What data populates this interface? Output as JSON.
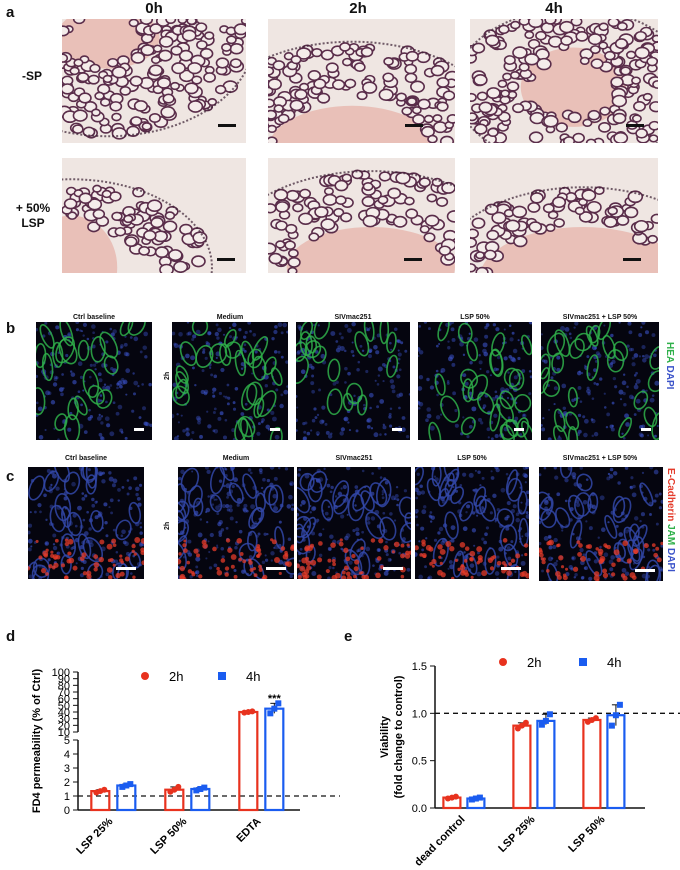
{
  "panels": {
    "a": "a",
    "b": "b",
    "c": "c",
    "d": "d",
    "e": "e"
  },
  "panel_a": {
    "col_headers": [
      "0h",
      "2h",
      "4h"
    ],
    "row1_label": "-SP",
    "row2_label_l1": "+ 50%",
    "row2_label_l2": "LSP"
  },
  "panel_b": {
    "titles": [
      "Ctrl baseline",
      "Medium",
      "SIVmac251",
      "LSP 50%",
      "SIVmac251 + LSP 50%"
    ],
    "time_label": "2h",
    "stain_hea": "HEA",
    "stain_dapi": "DAPI",
    "colors": {
      "hea": "#2fb04a",
      "dapi": "#3b53c9"
    }
  },
  "panel_c": {
    "titles": [
      "Ctrl baseline",
      "Medium",
      "SIVmac251",
      "LSP 50%",
      "SIVmac251 + LSP 50%"
    ],
    "time_label": "2h",
    "stain_ecad": "E-Cadherin",
    "stain_jam": "JAM",
    "stain_dapi": "DAPI",
    "colors": {
      "ecad": "#e43b2a",
      "jam": "#2fb04a",
      "dapi": "#3b53c9"
    }
  },
  "chart_data": [
    {
      "type": "bar",
      "panel": "d",
      "ylabel": "FD4 permeability (% of Ctrl)",
      "categories": [
        "LSP 25%",
        "LSP 50%",
        "EDTA"
      ],
      "series": [
        {
          "name": "2h",
          "color": "#e8321e",
          "values": [
            1.35,
            1.45,
            40
          ],
          "points": [
            [
              1.25,
              1.35,
              1.45
            ],
            [
              1.3,
              1.45,
              1.65
            ],
            [
              39,
              40,
              41
            ]
          ]
        },
        {
          "name": "4h",
          "color": "#1a5cf0",
          "values": [
            1.75,
            1.5,
            45
          ],
          "points": [
            [
              1.65,
              1.75,
              1.85
            ],
            [
              1.4,
              1.5,
              1.6
            ],
            [
              38,
              45,
              53
            ]
          ]
        }
      ],
      "y_axis_break": {
        "lower": [
          0,
          5
        ],
        "upper": [
          10,
          100
        ]
      },
      "yticks_lower": [
        0,
        1,
        2,
        3,
        4,
        5
      ],
      "yticks_upper": [
        10,
        20,
        30,
        40,
        50,
        60,
        70,
        80,
        90,
        100
      ],
      "reference_line": 1,
      "significance": "***"
    },
    {
      "type": "bar",
      "panel": "e",
      "ylabel_l1": "Viability",
      "ylabel_l2": "(fold change to control)",
      "categories": [
        "dead control",
        "LSP 25%",
        "LSP 50%"
      ],
      "series": [
        {
          "name": "2h",
          "color": "#e8321e",
          "values": [
            0.11,
            0.87,
            0.93
          ],
          "points": [
            [
              0.1,
              0.11,
              0.12
            ],
            [
              0.84,
              0.87,
              0.9
            ],
            [
              0.91,
              0.93,
              0.95
            ]
          ]
        },
        {
          "name": "4h",
          "color": "#1a5cf0",
          "values": [
            0.1,
            0.92,
            0.98
          ],
          "points": [
            [
              0.09,
              0.1,
              0.11
            ],
            [
              0.88,
              0.92,
              0.99
            ],
            [
              0.87,
              0.98,
              1.09
            ]
          ]
        }
      ],
      "ylim": [
        0,
        1.5
      ],
      "yticks": [
        "0.0",
        "0.5",
        "1.0",
        "1.5"
      ],
      "reference_line": 1.0
    }
  ]
}
